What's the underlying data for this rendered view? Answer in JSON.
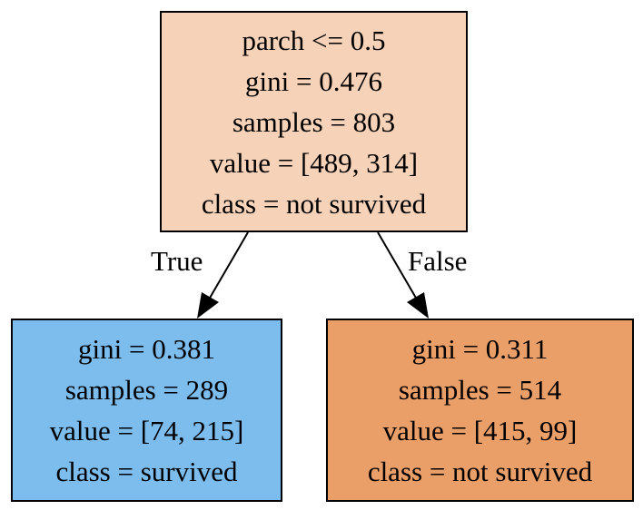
{
  "tree": {
    "root": {
      "split": "parch <= 0.5",
      "gini": "gini = 0.476",
      "samples": "samples = 803",
      "value": "value = [489, 314]",
      "class": "class = not survived",
      "fill": "#f6d2b8"
    },
    "left": {
      "gini": "gini = 0.381",
      "samples": "samples = 289",
      "value": "value = [74, 215]",
      "class": "class = survived",
      "fill": "#7cbdee"
    },
    "right": {
      "gini": "gini = 0.311",
      "samples": "samples = 514",
      "value": "value = [415, 99]",
      "class": "class = not survived",
      "fill": "#eb9f68"
    },
    "edges": {
      "true_label": "True",
      "false_label": "False"
    }
  }
}
